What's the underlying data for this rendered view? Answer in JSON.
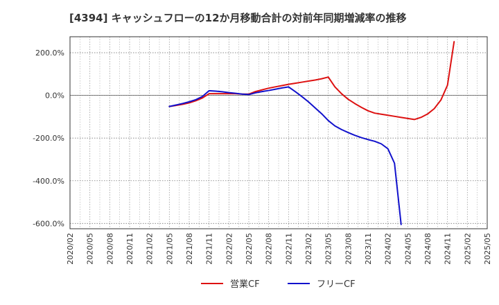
{
  "chart_data": {
    "type": "line",
    "title": "[4394]  キャッシュフローの12か月移動合計の対前年同期増減率の推移",
    "xlabel": "",
    "ylabel": "",
    "x_ticks": [
      "2020/02",
      "2020/05",
      "2020/08",
      "2020/11",
      "2021/02",
      "2021/05",
      "2021/08",
      "2021/11",
      "2022/02",
      "2022/05",
      "2022/08",
      "2022/11",
      "2023/02",
      "2023/05",
      "2023/08",
      "2023/11",
      "2024/02",
      "2024/05",
      "2024/08",
      "2024/11",
      "2025/02",
      "2025/05"
    ],
    "y_ticks": [
      {
        "value": 200,
        "label": "200.0%"
      },
      {
        "value": 0,
        "label": "0.0%"
      },
      {
        "value": -200,
        "label": "-200.0%"
      },
      {
        "value": -400,
        "label": "-400.0%"
      },
      {
        "value": -600,
        "label": "-600.0%"
      }
    ],
    "x_range": [
      "2020/02",
      "2025/05"
    ],
    "ylim": [
      -625,
      275
    ],
    "grid": true,
    "legend_position": "bottom",
    "series": [
      {
        "name": "営業CF",
        "color": "#dd1111",
        "points": [
          [
            "2021/05",
            -52
          ],
          [
            "2021/06",
            -47
          ],
          [
            "2021/07",
            -42
          ],
          [
            "2021/08",
            -35
          ],
          [
            "2021/09",
            -25
          ],
          [
            "2021/10",
            -12
          ],
          [
            "2021/11",
            8
          ],
          [
            "2021/12",
            8
          ],
          [
            "2022/01",
            8
          ],
          [
            "2022/02",
            8
          ],
          [
            "2022/03",
            8
          ],
          [
            "2022/04",
            6
          ],
          [
            "2022/05",
            6
          ],
          [
            "2022/06",
            18
          ],
          [
            "2022/07",
            26
          ],
          [
            "2022/08",
            34
          ],
          [
            "2022/09",
            40
          ],
          [
            "2022/10",
            46
          ],
          [
            "2022/11",
            52
          ],
          [
            "2022/12",
            57
          ],
          [
            "2023/01",
            62
          ],
          [
            "2023/02",
            67
          ],
          [
            "2023/03",
            72
          ],
          [
            "2023/04",
            78
          ],
          [
            "2023/05",
            86
          ],
          [
            "2023/06",
            40
          ],
          [
            "2023/07",
            8
          ],
          [
            "2023/08",
            -18
          ],
          [
            "2023/09",
            -38
          ],
          [
            "2023/10",
            -56
          ],
          [
            "2023/11",
            -72
          ],
          [
            "2023/12",
            -83
          ],
          [
            "2024/01",
            -88
          ],
          [
            "2024/02",
            -93
          ],
          [
            "2024/03",
            -98
          ],
          [
            "2024/04",
            -103
          ],
          [
            "2024/05",
            -108
          ],
          [
            "2024/06",
            -113
          ],
          [
            "2024/07",
            -103
          ],
          [
            "2024/08",
            -87
          ],
          [
            "2024/09",
            -62
          ],
          [
            "2024/10",
            -22
          ],
          [
            "2024/11",
            48
          ],
          [
            "2024/12",
            252
          ]
        ]
      },
      {
        "name": "フリーCF",
        "color": "#1111cc",
        "points": [
          [
            "2021/05",
            -52
          ],
          [
            "2021/06",
            -45
          ],
          [
            "2021/07",
            -38
          ],
          [
            "2021/08",
            -30
          ],
          [
            "2021/09",
            -20
          ],
          [
            "2021/10",
            -5
          ],
          [
            "2021/11",
            22
          ],
          [
            "2021/12",
            20
          ],
          [
            "2022/01",
            17
          ],
          [
            "2022/02",
            13
          ],
          [
            "2022/03",
            10
          ],
          [
            "2022/04",
            6
          ],
          [
            "2022/05",
            4
          ],
          [
            "2022/06",
            12
          ],
          [
            "2022/07",
            18
          ],
          [
            "2022/08",
            23
          ],
          [
            "2022/09",
            29
          ],
          [
            "2022/10",
            35
          ],
          [
            "2022/11",
            40
          ],
          [
            "2022/12",
            18
          ],
          [
            "2023/01",
            -5
          ],
          [
            "2023/02",
            -30
          ],
          [
            "2023/03",
            -58
          ],
          [
            "2023/04",
            -86
          ],
          [
            "2023/05",
            -118
          ],
          [
            "2023/06",
            -143
          ],
          [
            "2023/07",
            -160
          ],
          [
            "2023/08",
            -174
          ],
          [
            "2023/09",
            -187
          ],
          [
            "2023/10",
            -198
          ],
          [
            "2023/11",
            -207
          ],
          [
            "2023/12",
            -215
          ],
          [
            "2024/01",
            -227
          ],
          [
            "2024/02",
            -250
          ],
          [
            "2024/03",
            -318
          ],
          [
            "2024/04",
            -605
          ]
        ]
      }
    ]
  }
}
